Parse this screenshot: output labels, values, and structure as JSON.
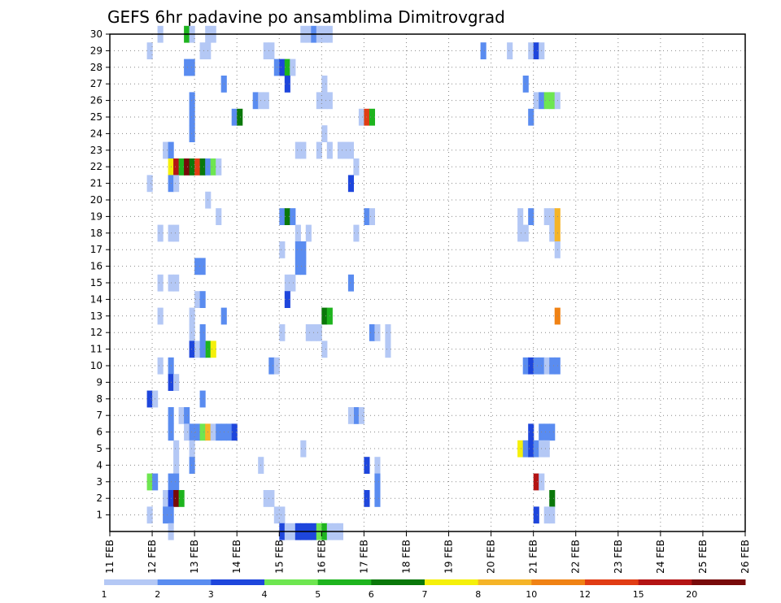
{
  "chart_data": {
    "type": "heatmap",
    "title": "GEFS 6hr padavine po ansamblima Dimitrovgrad",
    "x_ticks": [
      "11 FEB",
      "12 FEB",
      "13 FEB",
      "14 FEB",
      "15 FEB",
      "16 FEB",
      "17 FEB",
      "18 FEB",
      "19 FEB",
      "20 FEB",
      "21 FEB",
      "22 FEB",
      "23 FEB",
      "24 FEB",
      "25 FEB",
      "26 FEB"
    ],
    "y_ticks": [
      "1",
      "2",
      "3",
      "4",
      "5",
      "6",
      "7",
      "8",
      "9",
      "10",
      "11",
      "12",
      "13",
      "14",
      "15",
      "16",
      "17",
      "18",
      "19",
      "20",
      "21",
      "22",
      "23",
      "24",
      "25",
      "26",
      "27",
      "28",
      "29",
      "30"
    ],
    "x_unit_steps_per_day": 4,
    "ylim": [
      0,
      30
    ],
    "grid": true,
    "colorbar": {
      "labels": [
        "1",
        "2",
        "3",
        "4",
        "5",
        "6",
        "7",
        "8",
        "10",
        "12",
        "15",
        "20"
      ],
      "colors": [
        "#b4c8f5",
        "#5a8cf0",
        "#1e46dc",
        "#6ee650",
        "#1eb41e",
        "#0a780a",
        "#f5f00a",
        "#f5b428",
        "#f08214",
        "#e13c14",
        "#b41414",
        "#780a0a"
      ]
    },
    "cells": [
      [
        30,
        9,
        0
      ],
      [
        30,
        14,
        4
      ],
      [
        30,
        15,
        0
      ],
      [
        30,
        18,
        0
      ],
      [
        30,
        19,
        0
      ],
      [
        30,
        36,
        0
      ],
      [
        30,
        37,
        0
      ],
      [
        30,
        38,
        1
      ],
      [
        30,
        39,
        0
      ],
      [
        30,
        40,
        0
      ],
      [
        30,
        41,
        0
      ],
      [
        29,
        7,
        0
      ],
      [
        29,
        17,
        0
      ],
      [
        29,
        18,
        0
      ],
      [
        29,
        29,
        0
      ],
      [
        29,
        30,
        0
      ],
      [
        29,
        70,
        1
      ],
      [
        29,
        75,
        0
      ],
      [
        29,
        79,
        0
      ],
      [
        29,
        80,
        2
      ],
      [
        29,
        81,
        0
      ],
      [
        28,
        14,
        1
      ],
      [
        28,
        15,
        1
      ],
      [
        28,
        31,
        1
      ],
      [
        28,
        32,
        2
      ],
      [
        28,
        33,
        4
      ],
      [
        28,
        34,
        0
      ],
      [
        27,
        21,
        1
      ],
      [
        27,
        33,
        2
      ],
      [
        27,
        40,
        0
      ],
      [
        27,
        78,
        1
      ],
      [
        26,
        15,
        1
      ],
      [
        26,
        27,
        1
      ],
      [
        26,
        28,
        0
      ],
      [
        26,
        29,
        0
      ],
      [
        26,
        39,
        0
      ],
      [
        26,
        40,
        0
      ],
      [
        26,
        41,
        0
      ],
      [
        26,
        80,
        0
      ],
      [
        26,
        81,
        1
      ],
      [
        26,
        82,
        3
      ],
      [
        26,
        83,
        3
      ],
      [
        26,
        84,
        0
      ],
      [
        25,
        15,
        1
      ],
      [
        25,
        23,
        1
      ],
      [
        25,
        24,
        5
      ],
      [
        25,
        47,
        0
      ],
      [
        25,
        48,
        9
      ],
      [
        25,
        49,
        4
      ],
      [
        25,
        79,
        1
      ],
      [
        24,
        15,
        1
      ],
      [
        24,
        40,
        0
      ],
      [
        23,
        10,
        0
      ],
      [
        23,
        11,
        1
      ],
      [
        23,
        35,
        0
      ],
      [
        23,
        36,
        0
      ],
      [
        23,
        39,
        0
      ],
      [
        23,
        41,
        0
      ],
      [
        23,
        43,
        0
      ],
      [
        23,
        44,
        0
      ],
      [
        23,
        45,
        0
      ],
      [
        22,
        11,
        6
      ],
      [
        22,
        12,
        10
      ],
      [
        22,
        13,
        4
      ],
      [
        22,
        14,
        11
      ],
      [
        22,
        15,
        5
      ],
      [
        22,
        16,
        9
      ],
      [
        22,
        17,
        5
      ],
      [
        22,
        18,
        1
      ],
      [
        22,
        19,
        3
      ],
      [
        22,
        20,
        0
      ],
      [
        22,
        46,
        0
      ],
      [
        21,
        7,
        0
      ],
      [
        21,
        11,
        1
      ],
      [
        21,
        12,
        0
      ],
      [
        21,
        45,
        2
      ],
      [
        20,
        18,
        0
      ],
      [
        19,
        20,
        0
      ],
      [
        19,
        32,
        1
      ],
      [
        19,
        33,
        5
      ],
      [
        19,
        34,
        1
      ],
      [
        19,
        48,
        1
      ],
      [
        19,
        49,
        0
      ],
      [
        19,
        77,
        0
      ],
      [
        19,
        79,
        1
      ],
      [
        19,
        82,
        0
      ],
      [
        19,
        83,
        0
      ],
      [
        19,
        84,
        7
      ],
      [
        18,
        9,
        0
      ],
      [
        18,
        11,
        0
      ],
      [
        18,
        12,
        0
      ],
      [
        18,
        35,
        0
      ],
      [
        18,
        37,
        0
      ],
      [
        18,
        46,
        0
      ],
      [
        18,
        77,
        0
      ],
      [
        18,
        78,
        0
      ],
      [
        18,
        83,
        0
      ],
      [
        18,
        84,
        7
      ],
      [
        17,
        35,
        1
      ],
      [
        17,
        36,
        1
      ],
      [
        17,
        32,
        0
      ],
      [
        17,
        84,
        0
      ],
      [
        16,
        16,
        1
      ],
      [
        16,
        17,
        1
      ],
      [
        16,
        35,
        1
      ],
      [
        16,
        36,
        1
      ],
      [
        15,
        9,
        0
      ],
      [
        15,
        11,
        0
      ],
      [
        15,
        12,
        0
      ],
      [
        15,
        33,
        0
      ],
      [
        15,
        34,
        0
      ],
      [
        15,
        45,
        1
      ],
      [
        14,
        16,
        0
      ],
      [
        14,
        17,
        1
      ],
      [
        14,
        33,
        2
      ],
      [
        13,
        9,
        0
      ],
      [
        13,
        15,
        0
      ],
      [
        13,
        21,
        1
      ],
      [
        13,
        40,
        5
      ],
      [
        13,
        41,
        4
      ],
      [
        13,
        84,
        8
      ],
      [
        12,
        15,
        0
      ],
      [
        12,
        17,
        1
      ],
      [
        12,
        32,
        0
      ],
      [
        12,
        37,
        0
      ],
      [
        12,
        38,
        0
      ],
      [
        12,
        39,
        0
      ],
      [
        12,
        49,
        1
      ],
      [
        12,
        50,
        0
      ],
      [
        12,
        52,
        0
      ],
      [
        11,
        15,
        2
      ],
      [
        11,
        18,
        4
      ],
      [
        11,
        19,
        6
      ],
      [
        11,
        16,
        0
      ],
      [
        11,
        17,
        1
      ],
      [
        11,
        40,
        0
      ],
      [
        11,
        52,
        0
      ],
      [
        10,
        9,
        0
      ],
      [
        10,
        11,
        1
      ],
      [
        10,
        30,
        1
      ],
      [
        10,
        31,
        0
      ],
      [
        10,
        78,
        1
      ],
      [
        10,
        79,
        2
      ],
      [
        10,
        80,
        1
      ],
      [
        10,
        81,
        1
      ],
      [
        10,
        82,
        0
      ],
      [
        10,
        83,
        1
      ],
      [
        10,
        84,
        1
      ],
      [
        9,
        11,
        2
      ],
      [
        9,
        12,
        0
      ],
      [
        8,
        7,
        2
      ],
      [
        8,
        8,
        0
      ],
      [
        8,
        17,
        1
      ],
      [
        7,
        11,
        1
      ],
      [
        7,
        13,
        0
      ],
      [
        7,
        14,
        1
      ],
      [
        7,
        46,
        1
      ],
      [
        7,
        47,
        0
      ],
      [
        7,
        45,
        0
      ],
      [
        6,
        11,
        1
      ],
      [
        6,
        14,
        0
      ],
      [
        6,
        15,
        1
      ],
      [
        6,
        16,
        1
      ],
      [
        6,
        17,
        3
      ],
      [
        6,
        18,
        7
      ],
      [
        6,
        19,
        0
      ],
      [
        6,
        20,
        1
      ],
      [
        6,
        21,
        1
      ],
      [
        6,
        22,
        1
      ],
      [
        6,
        23,
        2
      ],
      [
        6,
        79,
        2
      ],
      [
        6,
        81,
        1
      ],
      [
        6,
        82,
        1
      ],
      [
        6,
        83,
        1
      ],
      [
        5,
        12,
        0
      ],
      [
        5,
        15,
        0
      ],
      [
        5,
        36,
        0
      ],
      [
        5,
        77,
        6
      ],
      [
        5,
        78,
        1
      ],
      [
        5,
        79,
        2
      ],
      [
        5,
        80,
        1
      ],
      [
        5,
        81,
        0
      ],
      [
        5,
        82,
        0
      ],
      [
        4,
        12,
        0
      ],
      [
        4,
        15,
        1
      ],
      [
        4,
        28,
        0
      ],
      [
        4,
        48,
        2
      ],
      [
        4,
        50,
        0
      ],
      [
        3,
        7,
        3
      ],
      [
        3,
        8,
        1
      ],
      [
        3,
        11,
        1
      ],
      [
        3,
        12,
        1
      ],
      [
        3,
        50,
        1
      ],
      [
        3,
        80,
        10
      ],
      [
        3,
        81,
        0
      ],
      [
        2,
        10,
        0
      ],
      [
        2,
        11,
        2
      ],
      [
        2,
        12,
        11
      ],
      [
        2,
        13,
        4
      ],
      [
        2,
        29,
        0
      ],
      [
        2,
        30,
        0
      ],
      [
        2,
        48,
        2
      ],
      [
        2,
        50,
        1
      ],
      [
        2,
        83,
        5
      ],
      [
        1,
        7,
        0
      ],
      [
        1,
        10,
        1
      ],
      [
        1,
        11,
        1
      ],
      [
        1,
        31,
        0
      ],
      [
        1,
        32,
        0
      ],
      [
        1,
        80,
        2
      ],
      [
        1,
        82,
        0
      ],
      [
        1,
        83,
        0
      ],
      [
        0,
        11,
        0
      ],
      [
        0,
        32,
        2
      ],
      [
        0,
        33,
        0
      ],
      [
        0,
        34,
        0
      ],
      [
        0,
        35,
        2
      ],
      [
        0,
        36,
        2
      ],
      [
        0,
        37,
        2
      ],
      [
        0,
        38,
        2
      ],
      [
        0,
        39,
        3
      ],
      [
        0,
        40,
        4
      ],
      [
        0,
        41,
        0
      ],
      [
        0,
        42,
        0
      ],
      [
        0,
        43,
        0
      ]
    ]
  }
}
